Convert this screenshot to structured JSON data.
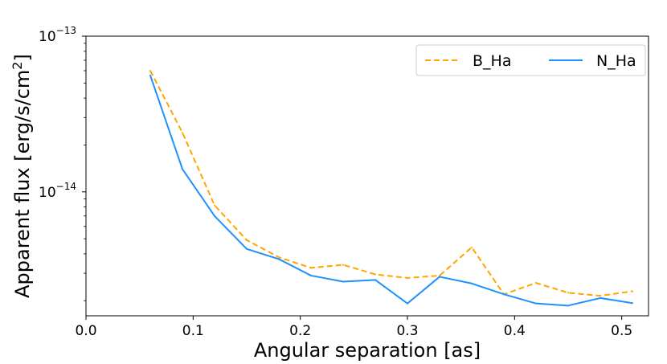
{
  "chart_data": {
    "type": "line",
    "xlabel": "Angular separation [as]",
    "ylabel_main": "Apparent flux [erg/s/cm",
    "ylabel_sup": "2",
    "ylabel_close": "]",
    "y_scale": "log",
    "xlim": [
      0.0,
      0.525
    ],
    "ylim": [
      1.6e-15,
      1e-13
    ],
    "x_ticks": [
      {
        "value": 0.0,
        "label": "0.0"
      },
      {
        "value": 0.1,
        "label": "0.1"
      },
      {
        "value": 0.2,
        "label": "0.2"
      },
      {
        "value": 0.3,
        "label": "0.3"
      },
      {
        "value": 0.4,
        "label": "0.4"
      },
      {
        "value": 0.5,
        "label": "0.5"
      }
    ],
    "y_ticks": [
      {
        "value": 1e-13,
        "base": "10",
        "exp": "−13"
      },
      {
        "value": 1e-14,
        "base": "10",
        "exp": "−14"
      }
    ],
    "legend_position": "top-right",
    "x": [
      0.06,
      0.09,
      0.12,
      0.15,
      0.18,
      0.21,
      0.24,
      0.27,
      0.3,
      0.33,
      0.36,
      0.39,
      0.42,
      0.45,
      0.48,
      0.51
    ],
    "series": [
      {
        "name": "B_Ha",
        "color": "#FFA500",
        "style": "dashed",
        "values": [
          6e-14,
          2.4e-14,
          8.2e-15,
          4.9e-15,
          3.8e-15,
          3.25e-15,
          3.4e-15,
          2.95e-15,
          2.8e-15,
          2.9e-15,
          4.4e-15,
          2.2e-15,
          2.6e-15,
          2.25e-15,
          2.15e-15,
          2.3e-15
        ]
      },
      {
        "name": "N_Ha",
        "color": "#1E90FF",
        "style": "solid",
        "values": [
          5.6e-14,
          1.4e-14,
          7e-15,
          4.3e-15,
          3.7e-15,
          2.9e-15,
          2.65e-15,
          2.72e-15,
          1.92e-15,
          2.85e-15,
          2.58e-15,
          2.2e-15,
          1.92e-15,
          1.86e-15,
          2.08e-15,
          1.93e-15
        ]
      }
    ]
  }
}
